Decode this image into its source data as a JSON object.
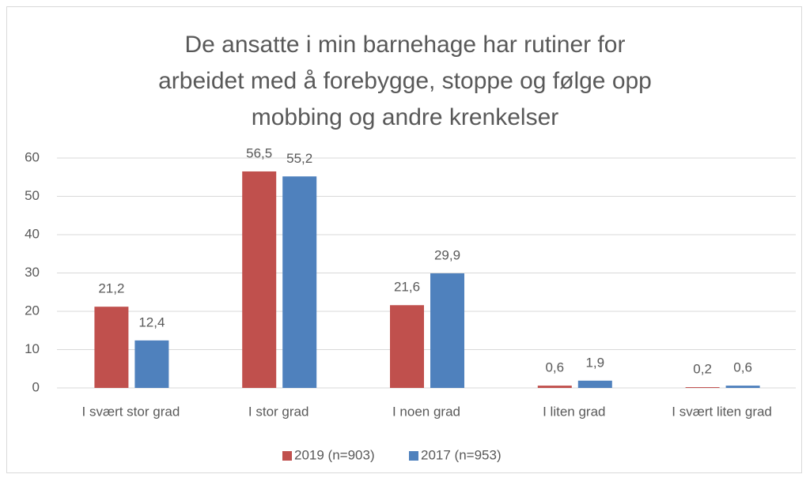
{
  "chart_data": {
    "type": "bar",
    "title": "De ansatte i min barnehage har rutiner for arbeidet med å forebygge, stoppe og følge opp mobbing og andre krenkelser",
    "categories": [
      "I svært stor grad",
      "I stor grad",
      "I noen grad",
      "I liten grad",
      "I svært liten grad"
    ],
    "series": [
      {
        "name": "2019 (n=903)",
        "color": "#c0504d",
        "values": [
          21.2,
          56.5,
          21.6,
          0.6,
          0.2
        ],
        "value_labels": [
          "21,2",
          "56,5",
          "21,6",
          "0,6",
          "0,2"
        ]
      },
      {
        "name": "2017 (n=953)",
        "color": "#4f81bd",
        "values": [
          12.4,
          55.2,
          29.9,
          1.9,
          0.6
        ],
        "value_labels": [
          "12,4",
          "55,2",
          "29,9",
          "1,9",
          "0,6"
        ]
      }
    ],
    "ylim": [
      0,
      60
    ],
    "yticks": [
      0,
      10,
      20,
      30,
      40,
      50,
      60
    ],
    "grid": true,
    "legend": "bottom"
  }
}
